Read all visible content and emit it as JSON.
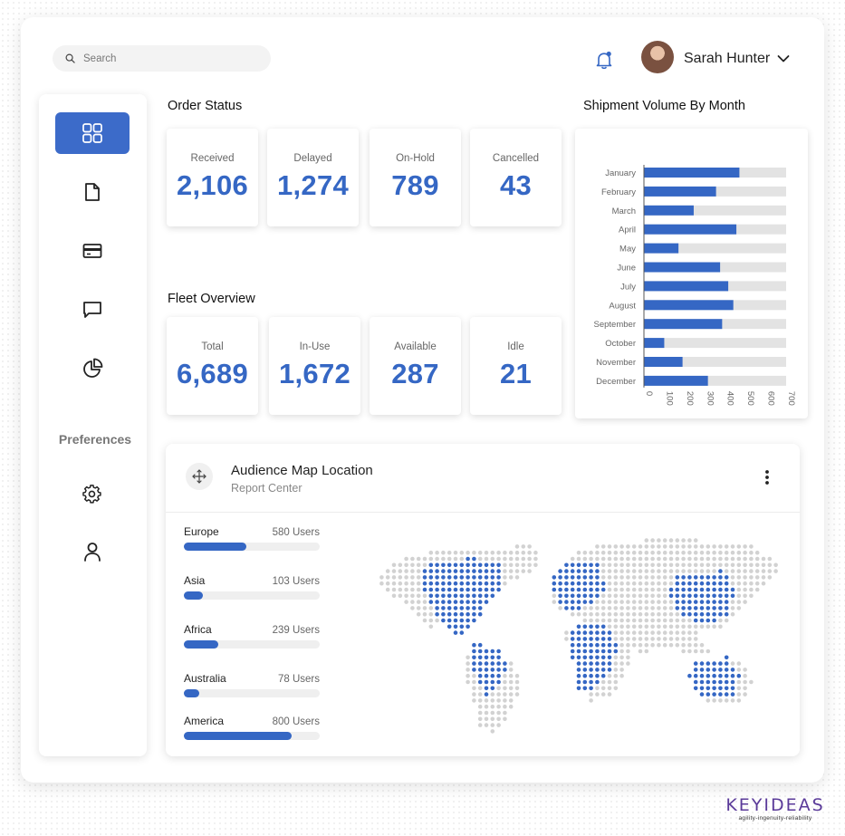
{
  "search": {
    "placeholder": "Search"
  },
  "user": {
    "name": "Sarah Hunter"
  },
  "icons": {
    "search": "search-icon",
    "bell": "bell-icon",
    "chevron": "chevron-down-icon",
    "dashboard": "grid-icon",
    "document": "document-icon",
    "card": "credit-card-icon",
    "chat": "chat-icon",
    "pie": "pie-chart-icon",
    "settings": "gear-icon",
    "person": "user-icon",
    "move": "move-icon",
    "menu": "more-vertical-icon"
  },
  "colors": {
    "accent": "#3567c4",
    "nav_active": "#3c6bc9",
    "muted_bar": "#e3e3e3",
    "dot_grey": "#d2d2d2"
  },
  "sidebar": {
    "preferences_label": "Preferences"
  },
  "order_status": {
    "title": "Order Status",
    "cards": [
      {
        "label": "Received",
        "value": "2,106"
      },
      {
        "label": "Delayed",
        "value": "1,274"
      },
      {
        "label": "On-Hold",
        "value": "789"
      },
      {
        "label": "Cancelled",
        "value": "43"
      }
    ]
  },
  "fleet": {
    "title": "Fleet Overview",
    "cards": [
      {
        "label": "Total",
        "value": "6,689"
      },
      {
        "label": "In-Use",
        "value": "1,672"
      },
      {
        "label": "Available",
        "value": "287"
      },
      {
        "label": "Idle",
        "value": "21"
      }
    ]
  },
  "shipment": {
    "title": "Shipment Volume By Month"
  },
  "chart_data": {
    "type": "bar",
    "orientation": "horizontal",
    "title": "Shipment Volume By Month",
    "categories": [
      "January",
      "February",
      "March",
      "April",
      "May",
      "June",
      "July",
      "August",
      "September",
      "October",
      "November",
      "December"
    ],
    "values": [
      470,
      355,
      245,
      455,
      170,
      375,
      415,
      440,
      385,
      100,
      190,
      315
    ],
    "xlim": [
      0,
      700
    ],
    "xticks": [
      "0",
      "100",
      "200",
      "300",
      "400",
      "500",
      "600",
      "700"
    ],
    "grid": false
  },
  "audience": {
    "title": "Audience Map Location",
    "subtitle": "Report Center",
    "regions": [
      {
        "name": "Europe",
        "users": "580 Users",
        "fraction": 0.46
      },
      {
        "name": "Asia",
        "users": "103 Users",
        "fraction": 0.14
      },
      {
        "name": "Africa",
        "users": "239 Users",
        "fraction": 0.25
      },
      {
        "name": "Australia",
        "users": "78 Users",
        "fraction": 0.11
      },
      {
        "name": "America",
        "users": "800 Users",
        "fraction": 0.79
      }
    ]
  },
  "brand": {
    "logo_text": "KEYIDEAS",
    "tagline": "agility-ingenuity-reliability"
  }
}
